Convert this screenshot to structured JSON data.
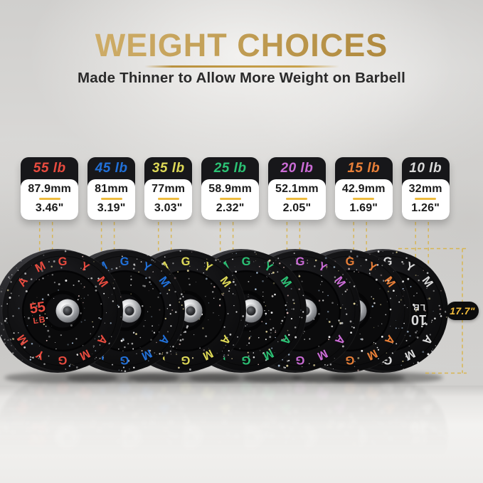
{
  "header": {
    "title": "WEIGHT CHOICES",
    "subtitle": "Made Thinner to Allow More Weight on Barbell"
  },
  "brand_arc_text": "AMGYM",
  "dimension": {
    "value": "17.7\""
  },
  "weights": [
    {
      "label": "55 lb",
      "value": "55",
      "unit": "LB",
      "mm": "87.9mm",
      "inch": "3.46\"",
      "color": "#e84b3f"
    },
    {
      "label": "45 lb",
      "value": "45",
      "unit": "LB",
      "mm": "81mm",
      "inch": "3.19\"",
      "color": "#2170d8"
    },
    {
      "label": "35 lb",
      "value": "35",
      "unit": "LB",
      "mm": "77mm",
      "inch": "3.03\"",
      "color": "#ded957"
    },
    {
      "label": "25 lb",
      "value": "25",
      "unit": "LB",
      "mm": "58.9mm",
      "inch": "2.32\"",
      "color": "#2bc274"
    },
    {
      "label": "20 lb",
      "value": "20",
      "unit": "LB",
      "mm": "52.1mm",
      "inch": "2.05\"",
      "color": "#cb6cd6"
    },
    {
      "label": "15 lb",
      "value": "15",
      "unit": "LB",
      "mm": "42.9mm",
      "inch": "1.69\"",
      "color": "#e87f38"
    },
    {
      "label": "10 lb",
      "value": "10",
      "unit": "LB",
      "mm": "32mm",
      "inch": "1.26\"",
      "color": "#dadada"
    }
  ],
  "colors": {
    "gold_title": "#c09c52",
    "dash_gold": "#d9b345",
    "card_black": "#17171a",
    "badge_text": "#f2bc3c"
  }
}
